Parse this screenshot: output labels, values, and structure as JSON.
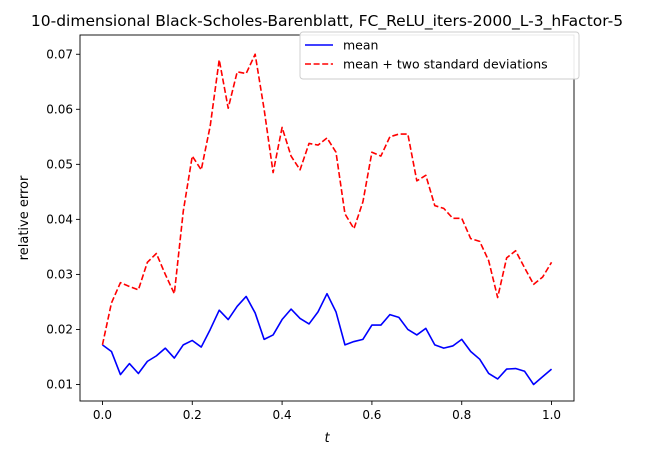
{
  "chart_data": {
    "type": "line",
    "title": "10-dimensional Black-Scholes-Barenblatt, FC_ReLU_iters-2000_L-3_hFactor-5",
    "xlabel": "t",
    "ylabel": "relative error",
    "xlim": [
      -0.05,
      1.05
    ],
    "ylim": [
      0.007,
      0.0735
    ],
    "xticks": [
      0.0,
      0.2,
      0.4,
      0.6,
      0.8,
      1.0
    ],
    "xtick_labels": [
      "0.0",
      "0.2",
      "0.4",
      "0.6",
      "0.8",
      "1.0"
    ],
    "yticks": [
      0.01,
      0.02,
      0.03,
      0.04,
      0.05,
      0.06,
      0.07
    ],
    "ytick_labels": [
      "0.01",
      "0.02",
      "0.03",
      "0.04",
      "0.05",
      "0.06",
      "0.07"
    ],
    "grid": false,
    "legend_position": "top-right",
    "x": [
      0.0,
      0.02,
      0.04,
      0.06,
      0.08,
      0.1,
      0.12,
      0.14,
      0.16,
      0.18,
      0.2,
      0.22,
      0.24,
      0.26,
      0.28,
      0.3,
      0.32,
      0.34,
      0.36,
      0.38,
      0.4,
      0.42,
      0.44,
      0.46,
      0.48,
      0.5,
      0.52,
      0.54,
      0.56,
      0.58,
      0.6,
      0.62,
      0.64,
      0.66,
      0.68,
      0.7,
      0.72,
      0.74,
      0.76,
      0.78,
      0.8,
      0.82,
      0.84,
      0.86,
      0.88,
      0.9,
      0.92,
      0.94,
      0.96,
      0.98,
      1.0
    ],
    "series": [
      {
        "name": "mean",
        "color": "#0000ff",
        "style": "solid",
        "values": [
          0.0172,
          0.016,
          0.0118,
          0.0138,
          0.012,
          0.0142,
          0.0152,
          0.0166,
          0.0148,
          0.0172,
          0.018,
          0.0168,
          0.02,
          0.0235,
          0.0218,
          0.0242,
          0.026,
          0.023,
          0.0182,
          0.019,
          0.0218,
          0.0237,
          0.022,
          0.021,
          0.0232,
          0.0265,
          0.0232,
          0.0172,
          0.0178,
          0.0182,
          0.0208,
          0.0208,
          0.0227,
          0.0222,
          0.02,
          0.019,
          0.0202,
          0.0172,
          0.0166,
          0.017,
          0.0182,
          0.016,
          0.0146,
          0.012,
          0.011,
          0.0128,
          0.0129,
          0.0124,
          0.01,
          0.0114,
          0.0128
        ]
      },
      {
        "name": "mean + two standard deviations",
        "color": "#ff0000",
        "style": "dashed",
        "values": [
          0.0172,
          0.0248,
          0.0285,
          0.0278,
          0.0272,
          0.0322,
          0.0338,
          0.03,
          0.0265,
          0.0415,
          0.0515,
          0.049,
          0.057,
          0.069,
          0.0602,
          0.0668,
          0.0665,
          0.07,
          0.06,
          0.0485,
          0.0567,
          0.0515,
          0.049,
          0.0538,
          0.0535,
          0.0548,
          0.0522,
          0.041,
          0.0383,
          0.0432,
          0.0522,
          0.0515,
          0.055,
          0.0555,
          0.0555,
          0.047,
          0.048,
          0.0425,
          0.042,
          0.0402,
          0.0402,
          0.0365,
          0.036,
          0.0325,
          0.0258,
          0.033,
          0.0343,
          0.0312,
          0.0282,
          0.0295,
          0.0322
        ]
      }
    ]
  }
}
